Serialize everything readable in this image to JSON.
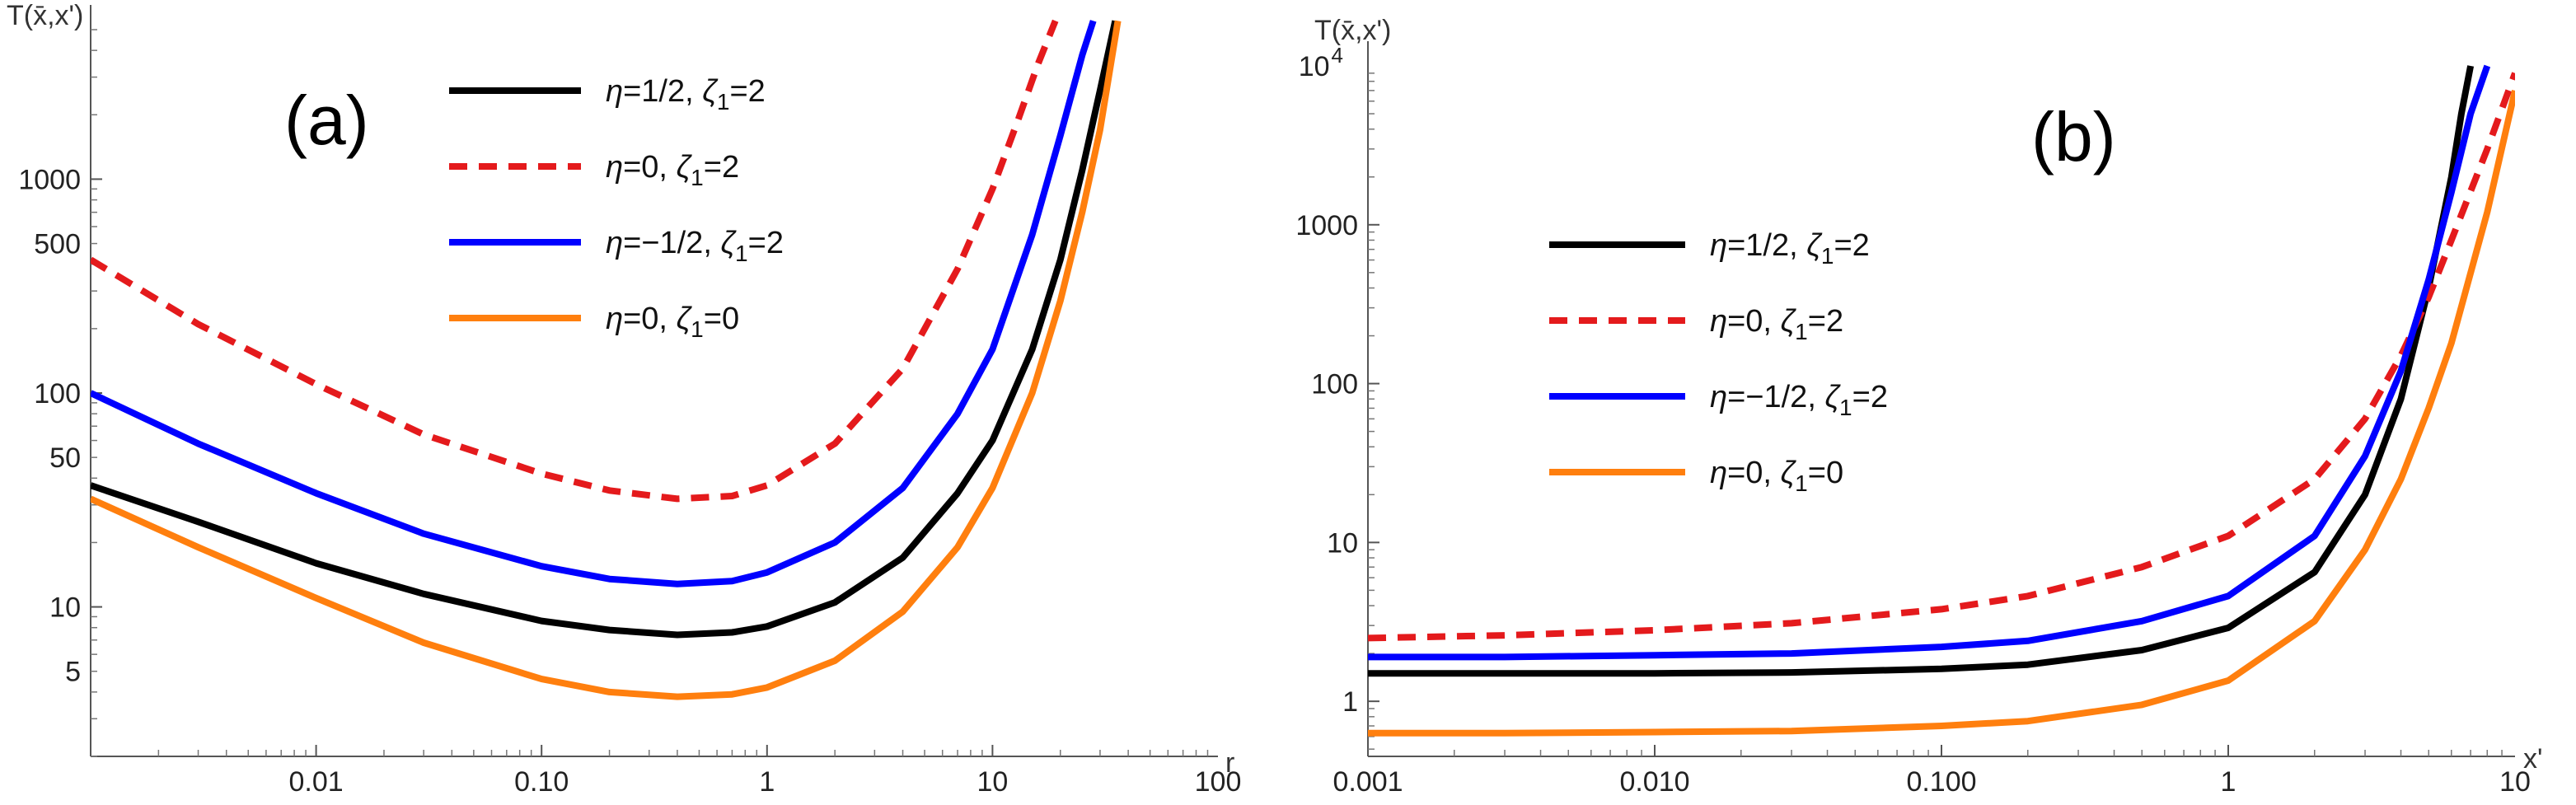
{
  "chart_data": [
    {
      "type": "line",
      "panel_label": "(a)",
      "xlabel": "r",
      "ylabel": "T(x̄,x')",
      "xscale": "log",
      "yscale": "log",
      "xlim": [
        0.001,
        100
      ],
      "ylim": [
        2,
        5000
      ],
      "x_ticks": [
        0.01,
        0.1,
        1,
        10,
        100
      ],
      "x_tick_labels": [
        "0.01",
        "0.10",
        "1",
        "10",
        "100"
      ],
      "y_ticks": [
        5,
        10,
        50,
        100,
        500,
        1000
      ],
      "y_tick_labels": [
        "5",
        "10",
        "50",
        "100",
        "500",
        "1000"
      ],
      "legend_position": "top-center",
      "series": [
        {
          "name": "η=1/2, ζ₁=2",
          "legend_eta": "η=1/2, ",
          "legend_zeta": "ζ",
          "legend_sub": "1",
          "legend_val": "=2",
          "color": "#000000",
          "dash": "solid",
          "x": [
            0.001,
            0.003,
            0.01,
            0.03,
            0.1,
            0.2,
            0.4,
            0.7,
            1,
            2,
            4,
            7,
            10,
            15,
            20,
            25,
            30,
            35
          ],
          "y": [
            37,
            25,
            16,
            11.5,
            8.6,
            7.8,
            7.4,
            7.6,
            8.1,
            10.5,
            17,
            34,
            60,
            160,
            420,
            1100,
            2600,
            5500
          ]
        },
        {
          "name": "η=0, ζ₁=2",
          "legend_eta": "η=0, ",
          "legend_zeta": "ζ",
          "legend_sub": "1",
          "legend_val": "=2",
          "color": "#e41a1c",
          "dash": "dashed",
          "x": [
            0.001,
            0.003,
            0.01,
            0.03,
            0.1,
            0.2,
            0.4,
            0.7,
            1,
            2,
            4,
            7,
            10,
            13,
            16,
            19
          ],
          "y": [
            420,
            210,
            110,
            64,
            42,
            35,
            32,
            33,
            37,
            58,
            130,
            380,
            900,
            1900,
            3500,
            5500
          ]
        },
        {
          "name": "η=-1/2, ζ₁=2",
          "legend_eta": "η=−1/2, ",
          "legend_zeta": "ζ",
          "legend_sub": "1",
          "legend_val": "=2",
          "color": "#0000ff",
          "dash": "solid",
          "x": [
            0.001,
            0.003,
            0.01,
            0.03,
            0.1,
            0.2,
            0.4,
            0.7,
            1,
            2,
            4,
            7,
            10,
            15,
            20,
            25,
            28
          ],
          "y": [
            100,
            58,
            34,
            22,
            15.5,
            13.5,
            12.8,
            13.2,
            14.5,
            20,
            36,
            80,
            160,
            550,
            1600,
            3800,
            5500
          ]
        },
        {
          "name": "η=0, ζ₁=0",
          "legend_eta": "η=0, ",
          "legend_zeta": "ζ",
          "legend_sub": "1",
          "legend_val": "=0",
          "color": "#ff7f0e",
          "dash": "solid",
          "x": [
            0.001,
            0.003,
            0.01,
            0.03,
            0.1,
            0.2,
            0.4,
            0.7,
            1,
            2,
            4,
            7,
            10,
            15,
            20,
            25,
            30,
            36
          ],
          "y": [
            32,
            19,
            11,
            6.8,
            4.6,
            4.0,
            3.8,
            3.9,
            4.2,
            5.6,
            9.5,
            19,
            36,
            100,
            270,
            700,
            1700,
            5500
          ]
        }
      ]
    },
    {
      "type": "line",
      "panel_label": "(b)",
      "xlabel": "x'",
      "ylabel": "T(x̄,x')",
      "xscale": "log",
      "yscale": "log",
      "xlim": [
        0.001,
        10
      ],
      "ylim": [
        0.45,
        10000
      ],
      "x_ticks": [
        0.001,
        0.01,
        0.1,
        1,
        10
      ],
      "x_tick_labels": [
        "0.001",
        "0.010",
        "0.100",
        "1",
        "10"
      ],
      "y_ticks": [
        1,
        10,
        100,
        1000
      ],
      "y_tick_labels": [
        "1",
        "10",
        "100",
        "1000"
      ],
      "y_top_label": {
        "base": "10",
        "exp": "4"
      },
      "legend_position": "center-left",
      "series": [
        {
          "name": "η=1/2, ζ₁=2",
          "legend_eta": "η=1/2, ",
          "legend_zeta": "ζ",
          "legend_sub": "1",
          "legend_val": "=2",
          "color": "#000000",
          "dash": "solid",
          "x": [
            0.001,
            0.003,
            0.01,
            0.03,
            0.1,
            0.2,
            0.5,
            1,
            2,
            3,
            4,
            5,
            6,
            6.5,
            7
          ],
          "y": [
            1.5,
            1.5,
            1.5,
            1.52,
            1.6,
            1.7,
            2.1,
            2.9,
            6.5,
            20,
            80,
            400,
            2000,
            5000,
            10000
          ]
        },
        {
          "name": "η=0, ζ₁=2",
          "legend_eta": "η=0, ",
          "legend_zeta": "ζ",
          "legend_sub": "1",
          "legend_val": "=2",
          "color": "#e41a1c",
          "dash": "dashed",
          "x": [
            0.001,
            0.003,
            0.01,
            0.03,
            0.1,
            0.2,
            0.5,
            1,
            2,
            3,
            4,
            5,
            6,
            8,
            10
          ],
          "y": [
            2.5,
            2.6,
            2.8,
            3.1,
            3.8,
            4.6,
            7,
            11,
            25,
            60,
            150,
            350,
            800,
            3000,
            9000
          ]
        },
        {
          "name": "η=-1/2, ζ₁=2",
          "legend_eta": "η=−1/2, ",
          "legend_zeta": "ζ",
          "legend_sub": "1",
          "legend_val": "=2",
          "color": "#0000ff",
          "dash": "solid",
          "x": [
            0.001,
            0.003,
            0.01,
            0.03,
            0.1,
            0.2,
            0.5,
            1,
            2,
            3,
            4,
            5,
            6,
            7,
            8
          ],
          "y": [
            1.9,
            1.9,
            1.95,
            2.0,
            2.2,
            2.4,
            3.2,
            4.6,
            11,
            35,
            120,
            450,
            1600,
            5000,
            10000
          ]
        },
        {
          "name": "η=0, ζ₁=0",
          "legend_eta": "η=0, ",
          "legend_zeta": "ζ",
          "legend_sub": "1",
          "legend_val": "=0",
          "color": "#ff7f0e",
          "dash": "solid",
          "x": [
            0.001,
            0.003,
            0.01,
            0.03,
            0.1,
            0.2,
            0.5,
            1,
            2,
            3,
            4,
            5,
            6,
            8,
            10
          ],
          "y": [
            0.63,
            0.63,
            0.64,
            0.65,
            0.7,
            0.75,
            0.95,
            1.35,
            3.2,
            9,
            25,
            70,
            180,
            1200,
            7000
          ]
        }
      ]
    }
  ]
}
